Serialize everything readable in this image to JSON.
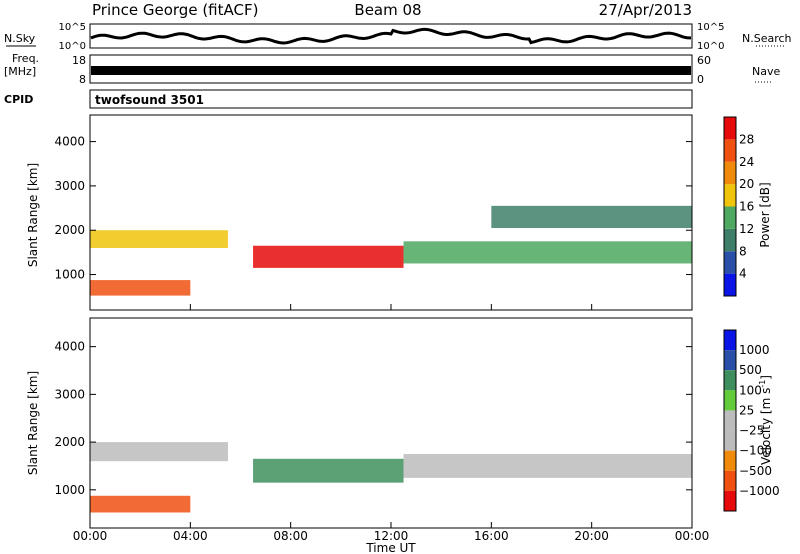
{
  "header": {
    "title": "Prince George (fitACF)",
    "beam": "Beam 08",
    "date": "27/Apr/2013"
  },
  "noise_panel": {
    "left_label": "N.Sky",
    "right_label": "N.Search",
    "left_ticks": [
      "10^5",
      "10^0"
    ],
    "right_ticks": [
      "10^5",
      "10^0"
    ]
  },
  "freq_panel": {
    "left_label_1": "Freq.",
    "left_label_2": "[MHz]",
    "right_label": "Nave",
    "left_ticks": [
      "18",
      "8"
    ],
    "right_ticks": [
      "60",
      "0"
    ]
  },
  "cpid_panel": {
    "label": "CPID",
    "program": "twofsound 3501"
  },
  "colors": {
    "power_scale": [
      "#0a14e6",
      "#2a4fa8",
      "#3f7f6a",
      "#4ea860",
      "#f0c40a",
      "#f08a0a",
      "#f05010",
      "#e60a0a"
    ],
    "velocity_scale": [
      "#e60a0a",
      "#f05010",
      "#f08a0a",
      "#bcbcbc",
      "#bcbcbc",
      "#62cc3a",
      "#3f8f5e",
      "#2a4fa8",
      "#0a14e6"
    ]
  },
  "chart_data": [
    {
      "type": "heatmap",
      "name": "power",
      "ylabel": "Slant Range [km]",
      "ylim": [
        200,
        4600
      ],
      "yticks": [
        "1000",
        "2000",
        "3000",
        "4000"
      ],
      "xlim": [
        0,
        24
      ],
      "colorbar": {
        "label": "Power [dB]",
        "range": [
          0,
          32
        ],
        "ticks": [
          "4",
          "8",
          "12",
          "16",
          "20",
          "24",
          "28"
        ]
      },
      "echo_bands": [
        {
          "t_start": 0.0,
          "t_end": 5.5,
          "range_center": 1800,
          "range_width": 400,
          "level": 16
        },
        {
          "t_start": 0.0,
          "t_end": 4.0,
          "range_center": 700,
          "range_width": 350,
          "level": 24
        },
        {
          "t_start": 6.5,
          "t_end": 12.5,
          "range_center": 1400,
          "range_width": 500,
          "level": 28
        },
        {
          "t_start": 12.5,
          "t_end": 24.0,
          "range_center": 1500,
          "range_width": 500,
          "level": 12
        },
        {
          "t_start": 16.0,
          "t_end": 24.0,
          "range_center": 2300,
          "range_width": 500,
          "level": 8
        }
      ]
    },
    {
      "type": "heatmap",
      "name": "velocity",
      "ylabel": "Slant Range [km]",
      "ylim": [
        200,
        4600
      ],
      "yticks": [
        "1000",
        "2000",
        "3000",
        "4000"
      ],
      "xlim": [
        0,
        24
      ],
      "xticks": [
        "00:00",
        "04:00",
        "08:00",
        "12:00",
        "16:00",
        "20:00",
        "00:00"
      ],
      "xlabel": "Time UT",
      "colorbar": {
        "label": "Velocity [m s",
        "label_exp": "-1",
        "label_end": "]",
        "ticks": [
          "1000",
          "500",
          "100",
          "25",
          "−25",
          "−100",
          "−500",
          "−1000"
        ]
      },
      "echo_bands": [
        {
          "t_start": 0.0,
          "t_end": 5.5,
          "range_center": 1800,
          "range_width": 400,
          "level": "~0"
        },
        {
          "t_start": 0.0,
          "t_end": 4.0,
          "range_center": 700,
          "range_width": 350,
          "level": "-300"
        },
        {
          "t_start": 6.5,
          "t_end": 12.5,
          "range_center": 1400,
          "range_width": 500,
          "level": "+150"
        },
        {
          "t_start": 12.5,
          "t_end": 24.0,
          "range_center": 1500,
          "range_width": 500,
          "level": "~0"
        }
      ]
    }
  ]
}
